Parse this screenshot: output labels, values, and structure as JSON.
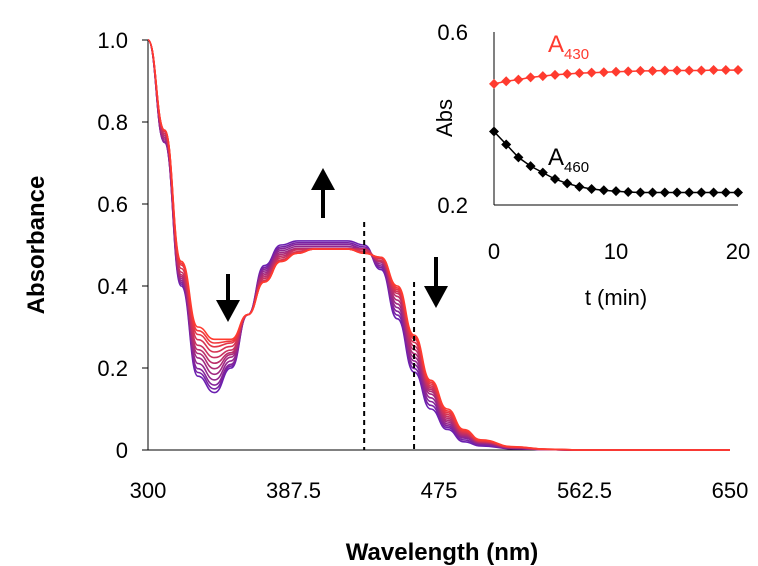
{
  "chart_data": [
    {
      "type": "line",
      "xlabel": "Wavelength (nm)",
      "ylabel": "Absorbance",
      "xlim": [
        300,
        650
      ],
      "ylim": [
        0,
        1.0
      ],
      "x_ticks": [
        "300",
        "387.5",
        "475",
        "562.5",
        "650"
      ],
      "x_tick_values": [
        300,
        387.5,
        475,
        562.5,
        650
      ],
      "y_ticks": [
        "0",
        "0.2",
        "0.4",
        "0.6",
        "0.8",
        "1.0"
      ],
      "y_tick_values": [
        0,
        0.2,
        0.4,
        0.6,
        0.8,
        1.0
      ],
      "series_count": 12,
      "series_color_start": "#6a1fb0",
      "series_color_end": "#ff3b2f",
      "x": [
        300,
        310,
        320,
        330,
        340,
        350,
        360,
        370,
        380,
        390,
        400,
        410,
        420,
        430,
        440,
        450,
        460,
        470,
        480,
        490,
        500,
        520,
        540,
        560,
        600,
        650
      ],
      "series": [
        {
          "values": [
            1.0,
            0.75,
            0.4,
            0.18,
            0.14,
            0.2,
            0.33,
            0.45,
            0.5,
            0.51,
            0.51,
            0.51,
            0.51,
            0.5,
            0.44,
            0.32,
            0.19,
            0.1,
            0.05,
            0.02,
            0.01,
            0.003,
            0.001,
            0.0,
            0.0,
            0.0
          ]
        },
        {
          "values": [
            1.0,
            0.75,
            0.41,
            0.2,
            0.16,
            0.21,
            0.33,
            0.44,
            0.49,
            0.5,
            0.5,
            0.5,
            0.5,
            0.49,
            0.45,
            0.34,
            0.21,
            0.12,
            0.06,
            0.03,
            0.015,
            0.004,
            0.001,
            0.0,
            0.0,
            0.0
          ]
        },
        {
          "values": [
            1.0,
            0.76,
            0.42,
            0.23,
            0.19,
            0.23,
            0.33,
            0.43,
            0.48,
            0.49,
            0.49,
            0.49,
            0.49,
            0.49,
            0.46,
            0.36,
            0.23,
            0.14,
            0.07,
            0.035,
            0.018,
            0.005,
            0.001,
            0.0,
            0.0,
            0.0
          ]
        },
        {
          "values": [
            1.0,
            0.77,
            0.43,
            0.25,
            0.22,
            0.24,
            0.33,
            0.42,
            0.47,
            0.49,
            0.49,
            0.49,
            0.49,
            0.49,
            0.46,
            0.38,
            0.25,
            0.15,
            0.08,
            0.04,
            0.02,
            0.006,
            0.001,
            0.0,
            0.0,
            0.0
          ]
        },
        {
          "values": [
            1.0,
            0.78,
            0.45,
            0.28,
            0.25,
            0.26,
            0.33,
            0.41,
            0.46,
            0.48,
            0.49,
            0.49,
            0.49,
            0.48,
            0.47,
            0.39,
            0.27,
            0.16,
            0.09,
            0.045,
            0.022,
            0.007,
            0.002,
            0.0,
            0.0,
            0.0
          ]
        },
        {
          "values": [
            1.0,
            0.78,
            0.46,
            0.3,
            0.27,
            0.27,
            0.33,
            0.41,
            0.46,
            0.48,
            0.49,
            0.49,
            0.49,
            0.48,
            0.47,
            0.4,
            0.28,
            0.17,
            0.1,
            0.05,
            0.025,
            0.008,
            0.002,
            0.0,
            0.0,
            0.0
          ]
        }
      ],
      "annotations": [
        "down-arrow at ~340 nm",
        "up-arrow at ~400 nm",
        "down-arrow at ~475 nm"
      ],
      "reference_lines_x": [
        430,
        460
      ]
    },
    {
      "type": "scatter",
      "inset": true,
      "xlabel": "t (min)",
      "ylabel": "Abs",
      "xlim": [
        0,
        20
      ],
      "ylim": [
        0.2,
        0.6
      ],
      "x_ticks": [
        "0",
        "10",
        "20"
      ],
      "x_tick_values": [
        0,
        10,
        20
      ],
      "y_ticks": [
        "0.2",
        "0.6"
      ],
      "y_tick_values": [
        0.2,
        0.6
      ],
      "series": [
        {
          "label_main": "A",
          "label_sub": "430",
          "color": "#ff3b2f",
          "x": [
            0,
            1,
            2,
            3,
            4,
            5,
            6,
            7,
            8,
            9,
            10,
            11,
            12,
            13,
            14,
            15,
            16,
            17,
            18,
            19,
            20
          ],
          "values": [
            0.48,
            0.486,
            0.49,
            0.495,
            0.498,
            0.501,
            0.503,
            0.505,
            0.506,
            0.507,
            0.508,
            0.509,
            0.51,
            0.51,
            0.511,
            0.511,
            0.511,
            0.511,
            0.512,
            0.512,
            0.512
          ]
        },
        {
          "label_main": "A",
          "label_sub": "460",
          "color": "#000000",
          "x": [
            0,
            1,
            2,
            3,
            4,
            5,
            6,
            7,
            8,
            9,
            10,
            11,
            12,
            13,
            14,
            15,
            16,
            17,
            18,
            19,
            20
          ],
          "values": [
            0.37,
            0.34,
            0.31,
            0.29,
            0.275,
            0.26,
            0.25,
            0.242,
            0.237,
            0.234,
            0.232,
            0.23,
            0.229,
            0.229,
            0.229,
            0.229,
            0.229,
            0.229,
            0.229,
            0.229,
            0.229
          ]
        }
      ]
    }
  ]
}
